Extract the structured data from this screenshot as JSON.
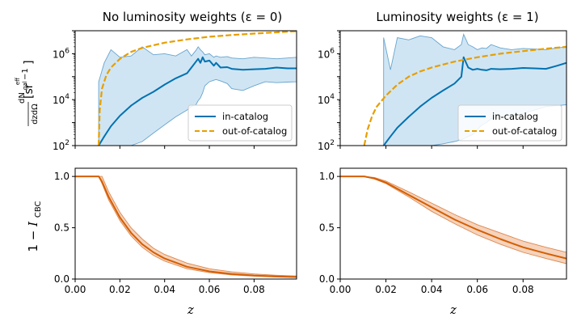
{
  "figure": {
    "xlabel": "z",
    "top_ylabel_frac_num": "dN",
    "top_ylabel_sup": "eff",
    "top_ylabel_sub": "gal",
    "top_ylabel_frac_den": "dzdΩ",
    "top_ylabel_unit": "[sr",
    "top_ylabel_unit_exp": "−1",
    "top_ylabel_unit_close": "]",
    "bottom_ylabel_prefix": "1 − ",
    "bottom_ylabel_symbol": "I",
    "bottom_ylabel_sub": "CBC"
  },
  "chart_data": [
    {
      "id": "top-left",
      "type": "line",
      "title": "No luminosity weights (ε = 0)",
      "yscale": "log",
      "ylim": [
        100,
        10000000
      ],
      "xlim": [
        0,
        0.099
      ],
      "yticks": [
        {
          "value": 100,
          "base": "10",
          "exp": "2"
        },
        {
          "value": 10000,
          "base": "10",
          "exp": "4"
        },
        {
          "value": 1000000,
          "base": "10",
          "exp": "6"
        }
      ],
      "legend": {
        "position": "lower-right",
        "entries": [
          "in-catalog",
          "out-of-catalog"
        ]
      },
      "series": [
        {
          "name": "in-catalog",
          "style": "solid",
          "color": "#0072B2",
          "x": [
            0.0105,
            0.013,
            0.016,
            0.02,
            0.025,
            0.03,
            0.035,
            0.04,
            0.045,
            0.05,
            0.052,
            0.054,
            0.055,
            0.056,
            0.057,
            0.058,
            0.06,
            0.062,
            0.063,
            0.065,
            0.068,
            0.07,
            0.075,
            0.08,
            0.085,
            0.09,
            0.095,
            0.099
          ],
          "y": [
            100,
            250,
            700,
            2000,
            5500,
            12000,
            22000,
            45000,
            85000,
            140000,
            250000,
            450000,
            600000,
            400000,
            700000,
            450000,
            500000,
            300000,
            400000,
            250000,
            260000,
            220000,
            200000,
            210000,
            220000,
            250000,
            230000,
            230000
          ],
          "band_low": [
            100,
            100,
            100,
            100,
            100,
            150,
            350,
            800,
            1800,
            3500,
            5000,
            6000,
            9000,
            12000,
            20000,
            40000,
            60000,
            70000,
            75000,
            65000,
            50000,
            30000,
            25000,
            40000,
            60000,
            55000,
            58000,
            60000
          ],
          "band_high": [
            60000,
            400000,
            1500000,
            700000,
            800000,
            2000000,
            900000,
            1000000,
            800000,
            1500000,
            800000,
            1400000,
            2000000,
            1500000,
            1200000,
            900000,
            1000000,
            700000,
            800000,
            700000,
            750000,
            650000,
            600000,
            700000,
            650000,
            600000,
            650000,
            700000
          ]
        },
        {
          "name": "out-of-catalog",
          "style": "dashed",
          "color": "#E69F00",
          "x": [
            0.0105,
            0.011,
            0.012,
            0.014,
            0.016,
            0.02,
            0.025,
            0.03,
            0.04,
            0.05,
            0.06,
            0.07,
            0.08,
            0.09,
            0.099
          ],
          "y": [
            100,
            3500,
            30000,
            120000,
            250000,
            600000,
            1200000,
            1800000,
            3000000,
            4200000,
            5500000,
            6500000,
            7500000,
            8500000,
            9500000
          ]
        }
      ]
    },
    {
      "id": "top-right",
      "type": "line",
      "title": "Luminosity weights (ε = 1)",
      "yscale": "log",
      "ylim": [
        100,
        10000000
      ],
      "xlim": [
        0,
        0.099
      ],
      "yticks": [
        {
          "value": 100,
          "base": "10",
          "exp": "2"
        },
        {
          "value": 10000,
          "base": "10",
          "exp": "4"
        },
        {
          "value": 1000000,
          "base": "10",
          "exp": "6"
        }
      ],
      "legend": {
        "position": "lower-right",
        "entries": [
          "in-catalog",
          "out-of-catalog"
        ]
      },
      "series": [
        {
          "name": "in-catalog",
          "style": "solid",
          "color": "#0072B2",
          "x": [
            0.019,
            0.022,
            0.025,
            0.03,
            0.035,
            0.04,
            0.045,
            0.05,
            0.053,
            0.054,
            0.056,
            0.058,
            0.06,
            0.062,
            0.064,
            0.066,
            0.07,
            0.075,
            0.08,
            0.085,
            0.09,
            0.095,
            0.099
          ],
          "y": [
            100,
            250,
            600,
            1800,
            5000,
            12000,
            25000,
            50000,
            100000,
            700000,
            250000,
            200000,
            220000,
            200000,
            190000,
            220000,
            210000,
            220000,
            240000,
            230000,
            220000,
            300000,
            400000
          ],
          "band_low": [
            100,
            100,
            100,
            100,
            100,
            100,
            120,
            150,
            180,
            200,
            250,
            300,
            500,
            800,
            1000,
            1500,
            1800,
            2000,
            2500,
            3500,
            5000,
            5500,
            6000
          ],
          "band_high": [
            5000000,
            200000,
            5000000,
            4000000,
            6000000,
            5000000,
            2000000,
            1500000,
            2500000,
            7000000,
            2500000,
            2000000,
            1500000,
            1800000,
            1700000,
            2500000,
            1800000,
            1500000,
            1700000,
            1600000,
            1500000,
            1800000,
            2000000
          ]
        },
        {
          "name": "out-of-catalog",
          "style": "dashed",
          "color": "#E69F00",
          "x": [
            0.0105,
            0.012,
            0.014,
            0.016,
            0.02,
            0.025,
            0.03,
            0.035,
            0.04,
            0.05,
            0.06,
            0.07,
            0.08,
            0.09,
            0.099
          ],
          "y": [
            100,
            500,
            2000,
            5000,
            15000,
            45000,
            100000,
            170000,
            250000,
            450000,
            700000,
            1000000,
            1300000,
            1650000,
            2000000
          ]
        }
      ]
    },
    {
      "id": "bottom-left",
      "type": "line",
      "yscale": "linear",
      "ylim": [
        0,
        1.08
      ],
      "xlim": [
        0,
        0.099
      ],
      "yticks": [
        0.0,
        0.5,
        1.0
      ],
      "ytick_labels": [
        "0.0",
        "0.5",
        "1.0"
      ],
      "xticks": [
        0.0,
        0.02,
        0.04,
        0.06,
        0.08
      ],
      "xtick_labels": [
        "0.00",
        "0.02",
        "0.04",
        "0.06",
        "0.08"
      ],
      "series": [
        {
          "name": "1 − I_CBC",
          "style": "solid",
          "color": "#D55E00",
          "x": [
            0.0,
            0.0105,
            0.012,
            0.015,
            0.02,
            0.025,
            0.03,
            0.035,
            0.04,
            0.05,
            0.06,
            0.07,
            0.08,
            0.09,
            0.099
          ],
          "y": [
            1.0,
            1.0,
            0.95,
            0.8,
            0.6,
            0.45,
            0.34,
            0.26,
            0.2,
            0.12,
            0.075,
            0.05,
            0.035,
            0.025,
            0.02
          ],
          "band_low": [
            1.0,
            1.0,
            0.93,
            0.77,
            0.57,
            0.42,
            0.31,
            0.23,
            0.175,
            0.1,
            0.062,
            0.04,
            0.028,
            0.019,
            0.015
          ],
          "band_high": [
            1.0,
            1.0,
            1.0,
            0.85,
            0.65,
            0.5,
            0.39,
            0.3,
            0.24,
            0.155,
            0.1,
            0.07,
            0.05,
            0.037,
            0.03
          ]
        }
      ]
    },
    {
      "id": "bottom-right",
      "type": "line",
      "yscale": "linear",
      "ylim": [
        0,
        1.08
      ],
      "xlim": [
        0,
        0.099
      ],
      "yticks": [
        0.0,
        0.5,
        1.0
      ],
      "ytick_labels": [
        "0.0",
        "0.5",
        "1.0"
      ],
      "xticks": [
        0.0,
        0.02,
        0.04,
        0.06,
        0.08
      ],
      "xtick_labels": [
        "0.00",
        "0.02",
        "0.04",
        "0.06",
        "0.08"
      ],
      "series": [
        {
          "name": "1 − I_CBC",
          "style": "solid",
          "color": "#D55E00",
          "x": [
            0.0,
            0.0105,
            0.015,
            0.02,
            0.03,
            0.04,
            0.05,
            0.06,
            0.07,
            0.08,
            0.09,
            0.099
          ],
          "y": [
            1.0,
            1.0,
            0.98,
            0.94,
            0.82,
            0.7,
            0.58,
            0.48,
            0.39,
            0.31,
            0.25,
            0.2
          ],
          "band_low": [
            1.0,
            1.0,
            0.975,
            0.93,
            0.8,
            0.66,
            0.54,
            0.43,
            0.34,
            0.26,
            0.2,
            0.15
          ],
          "band_high": [
            1.0,
            1.0,
            0.99,
            0.955,
            0.85,
            0.74,
            0.63,
            0.53,
            0.45,
            0.37,
            0.31,
            0.26
          ]
        }
      ]
    }
  ]
}
